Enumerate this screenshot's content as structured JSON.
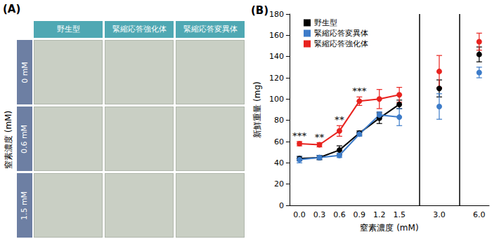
{
  "panel_a": {
    "label": "(A)",
    "columns": [
      "野生型",
      "緊縮応答強化体",
      "緊縮応答変異体"
    ],
    "row_title": "窒素濃度 (mM)",
    "rows": [
      "0 mM",
      "0.6 mM",
      "1.5 mM"
    ]
  },
  "chart_data": {
    "type": "line",
    "title": "(B)",
    "x_label": "窒素濃度 (mM)",
    "y_label": "新鮮重量 (mg)",
    "categories": [
      "0.0",
      "0.3",
      "0.6",
      "0.9",
      "1.2",
      "1.5",
      null,
      "3.0",
      null,
      "6.0"
    ],
    "series": [
      {
        "name": "野生型",
        "color": "#000000",
        "values": [
          44,
          45,
          52,
          68,
          82,
          95,
          null,
          110,
          null,
          142
        ],
        "errors": [
          2,
          2,
          4,
          2,
          5,
          4,
          null,
          8,
          null,
          7
        ]
      },
      {
        "name": "緊縮応答変異体",
        "color": "#3d7cc9",
        "values": [
          43,
          45,
          47,
          67,
          85,
          83,
          null,
          93,
          null,
          125
        ],
        "errors": [
          3,
          2,
          2,
          2,
          3,
          8,
          null,
          12,
          null,
          5
        ]
      },
      {
        "name": "緊縮応答強化体",
        "color": "#e8231f",
        "values": [
          58,
          57,
          70,
          98,
          100,
          104,
          null,
          126,
          null,
          154
        ],
        "errors": [
          2,
          2,
          5,
          4,
          9,
          7,
          null,
          15,
          null,
          8
        ]
      }
    ],
    "significance": [
      "***",
      "**",
      "**",
      "***",
      null,
      null,
      null,
      null,
      null,
      null
    ],
    "ylim": [
      0,
      180
    ],
    "yticks": [
      0,
      20,
      40,
      60,
      80,
      100,
      120,
      140,
      160,
      180
    ],
    "marker": "circle",
    "grid": false,
    "legend": "upper left"
  }
}
